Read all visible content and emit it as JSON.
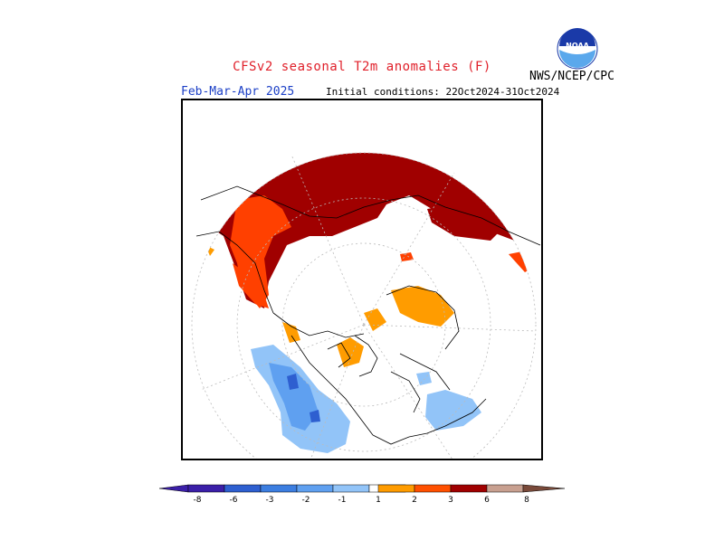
{
  "header": {
    "title": "CFSv2 seasonal T2m anomalies (F)",
    "season": "Feb-Mar-Apr 2025",
    "initial_conditions": "Initial conditions: 22Oct2024-31Oct2024",
    "agency": "NWS/NCEP/CPC",
    "logo_text": "NOAA"
  },
  "colorbar": {
    "labels": [
      "-8",
      "-6",
      "-3",
      "-2",
      "-1",
      "1",
      "2",
      "3",
      "6",
      "8"
    ],
    "colors": [
      "#3b1fa8",
      "#2e5fd0",
      "#3c7ee0",
      "#5fa0f0",
      "#92c4f8",
      "#ffffff",
      "#ff9c00",
      "#ff5000",
      "#ff2800",
      "#a00000",
      "#c8a090",
      "#7a4a3a"
    ]
  },
  "map": {
    "projection": "north-polar-stereographic",
    "colors": {
      "warm_strong": "#a00000",
      "warm_mid": "#ff4000",
      "warm_light": "#ff9c00",
      "cool_light": "#92c4f8",
      "cool_mid": "#5fa0f0",
      "cool_strong": "#2e5fd0"
    }
  }
}
